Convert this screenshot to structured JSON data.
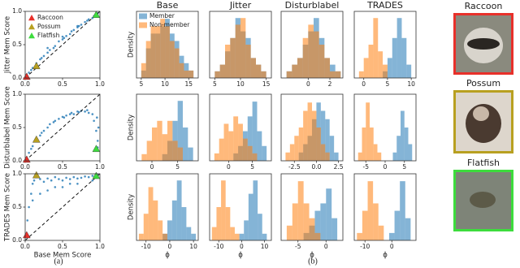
{
  "chart_data": [
    {
      "type": "scatter",
      "ylabel": "Jitter Mem Score",
      "xlim": [
        0,
        1
      ],
      "ylim": [
        0,
        1
      ],
      "xticks": [
        {
          "value": 0,
          "label": "0.0"
        },
        {
          "value": 0.5,
          "label": "0.5"
        },
        {
          "value": 1,
          "label": "1.0"
        }
      ],
      "yticks": [
        {
          "value": 0,
          "label": "0.0"
        },
        {
          "value": 0.5,
          "label": "0.5"
        },
        {
          "value": 1,
          "label": "1.0"
        }
      ],
      "color": "#1f77b4",
      "diagonal": true,
      "legend": "upper left",
      "x": [
        0.02,
        0.05,
        0.08,
        0.1,
        0.15,
        0.2,
        0.22,
        0.25,
        0.3,
        0.33,
        0.38,
        0.4,
        0.45,
        0.5,
        0.52,
        0.55,
        0.6,
        0.62,
        0.65,
        0.7,
        0.72,
        0.75,
        0.8,
        0.83,
        0.85,
        0.9,
        0.92,
        0.95,
        0.97,
        0.3,
        0.5,
        0.7
      ],
      "y": [
        0.05,
        0.08,
        0.12,
        0.15,
        0.22,
        0.28,
        0.3,
        0.33,
        0.38,
        0.42,
        0.45,
        0.48,
        0.55,
        0.58,
        0.6,
        0.63,
        0.66,
        0.7,
        0.72,
        0.76,
        0.78,
        0.8,
        0.84,
        0.86,
        0.88,
        0.9,
        0.93,
        0.95,
        0.97,
        0.45,
        0.62,
        0.78
      ],
      "markers": [
        {
          "name": "Raccoon",
          "color": "#e8302a",
          "x": 0.02,
          "y": 0.02
        },
        {
          "name": "Possum",
          "color": "#b8a020",
          "x": 0.15,
          "y": 0.18
        },
        {
          "name": "Flatfish",
          "color": "#3ddc3d",
          "x": 0.95,
          "y": 0.95
        }
      ]
    },
    {
      "type": "scatter",
      "ylabel": "Disturblabel Mem Score",
      "xlim": [
        0,
        1
      ],
      "ylim": [
        0,
        1
      ],
      "xticks": [
        {
          "value": 0,
          "label": "0.0"
        },
        {
          "value": 0.5,
          "label": "0.5"
        },
        {
          "value": 1,
          "label": "1.0"
        }
      ],
      "yticks": [
        {
          "value": 0,
          "label": "0.0"
        },
        {
          "value": 0.5,
          "label": "0.5"
        },
        {
          "value": 1,
          "label": "1.0"
        }
      ],
      "color": "#1f77b4",
      "diagonal": true,
      "x": [
        0.02,
        0.05,
        0.08,
        0.1,
        0.15,
        0.2,
        0.22,
        0.25,
        0.3,
        0.33,
        0.38,
        0.4,
        0.45,
        0.5,
        0.52,
        0.55,
        0.6,
        0.62,
        0.65,
        0.7,
        0.72,
        0.75,
        0.8,
        0.83,
        0.85,
        0.9,
        0.92,
        0.95,
        0.97,
        0.97,
        0.98,
        0.96
      ],
      "y": [
        0.05,
        0.12,
        0.18,
        0.22,
        0.3,
        0.38,
        0.42,
        0.45,
        0.5,
        0.55,
        0.58,
        0.6,
        0.63,
        0.66,
        0.65,
        0.68,
        0.7,
        0.72,
        0.7,
        0.74,
        0.73,
        0.75,
        0.74,
        0.76,
        0.72,
        0.7,
        0.6,
        0.45,
        0.3,
        0.2,
        0.5,
        0.65
      ],
      "markers": [
        {
          "color": "#e8302a",
          "x": 0.02,
          "y": 0.02
        },
        {
          "color": "#b8a020",
          "x": 0.15,
          "y": 0.32
        },
        {
          "color": "#3ddc3d",
          "x": 0.95,
          "y": 0.18
        }
      ]
    },
    {
      "type": "scatter",
      "ylabel": "TRADES Mem Score",
      "xlabel": "Base Mem Score",
      "xlim": [
        0,
        1
      ],
      "ylim": [
        0,
        1
      ],
      "xticks": [
        {
          "value": 0,
          "label": "0.0"
        },
        {
          "value": 0.5,
          "label": "0.5"
        },
        {
          "value": 1,
          "label": "1.0"
        }
      ],
      "yticks": [
        {
          "value": 0,
          "label": "0.0"
        },
        {
          "value": 0.5,
          "label": "0.5"
        },
        {
          "value": 1,
          "label": "1.0"
        }
      ],
      "color": "#1f77b4",
      "diagonal": true,
      "x": [
        0.02,
        0.03,
        0.05,
        0.08,
        0.1,
        0.12,
        0.15,
        0.2,
        0.25,
        0.3,
        0.35,
        0.4,
        0.45,
        0.5,
        0.55,
        0.6,
        0.65,
        0.7,
        0.75,
        0.8,
        0.85,
        0.9,
        0.95,
        0.97,
        0.1,
        0.3,
        0.5,
        0.7,
        0.9,
        0.2,
        0.4,
        0.6
      ],
      "y": [
        0.1,
        0.3,
        0.5,
        0.7,
        0.85,
        0.9,
        0.95,
        0.92,
        0.88,
        0.93,
        0.9,
        0.95,
        0.92,
        0.9,
        0.94,
        0.92,
        0.95,
        0.93,
        0.94,
        0.96,
        0.95,
        0.97,
        0.96,
        0.98,
        0.6,
        0.75,
        0.8,
        0.85,
        0.9,
        0.7,
        0.8,
        0.85
      ],
      "markers": [
        {
          "color": "#e8302a",
          "x": 0.02,
          "y": 0.08
        },
        {
          "color": "#b8a020",
          "x": 0.15,
          "y": 0.98
        },
        {
          "color": "#3ddc3d",
          "x": 0.95,
          "y": 0.97
        }
      ]
    },
    {
      "type": "histogram",
      "title": "Base",
      "ylabel": "Density",
      "legend": "upper left",
      "xlim": [
        4,
        17
      ],
      "ylim": [
        0,
        9
      ],
      "xticks": [
        5,
        10,
        15
      ],
      "bins": [
        5,
        6,
        7,
        8,
        9,
        10,
        11,
        12,
        13,
        14,
        15,
        16
      ],
      "series": [
        {
          "name": "Member",
          "color": "#1f77b4",
          "values": [
            1,
            4,
            6,
            6,
            7,
            8,
            6,
            5,
            3,
            2,
            1
          ]
        },
        {
          "name": "Non-member",
          "color": "#ff7f0e",
          "values": [
            2,
            5,
            7,
            7,
            8,
            7,
            5,
            4,
            2,
            1,
            1
          ]
        }
      ]
    },
    {
      "type": "histogram",
      "title": "Jitter",
      "xlim": [
        4,
        16
      ],
      "ylim": [
        0,
        10
      ],
      "xticks": [
        5,
        10,
        15
      ],
      "bins": [
        5,
        6,
        7,
        8,
        9,
        10,
        11,
        12,
        13,
        14,
        15
      ],
      "series": [
        {
          "color": "#1f77b4",
          "values": [
            1,
            2,
            4,
            6,
            9,
            7,
            6,
            3,
            2,
            1
          ]
        },
        {
          "color": "#ff7f0e",
          "values": [
            1,
            2,
            5,
            6,
            8,
            9,
            5,
            3,
            2,
            1
          ]
        }
      ]
    },
    {
      "type": "histogram",
      "title": "Disturblabel",
      "xlim": [
        -2.5,
        3.2
      ],
      "ylim": [
        0,
        10
      ],
      "xticks": [
        0,
        2
      ],
      "bins": [
        -2,
        -1.5,
        -1,
        -0.5,
        0,
        0.5,
        1,
        1.5,
        2,
        2.5,
        3
      ],
      "series": [
        {
          "color": "#1f77b4",
          "values": [
            1,
            2,
            3,
            5,
            7,
            9,
            6,
            3,
            2,
            1
          ]
        },
        {
          "color": "#ff7f0e",
          "values": [
            1,
            2,
            3,
            6,
            8,
            7,
            5,
            3,
            1,
            1
          ]
        }
      ]
    },
    {
      "type": "histogram",
      "title": "TRADES",
      "xlim": [
        -2,
        11
      ],
      "ylim": [
        0,
        10
      ],
      "xticks": [
        0,
        5,
        10
      ],
      "bins": [
        -1,
        0,
        1,
        2,
        3,
        4,
        5,
        6,
        7,
        8,
        9,
        10
      ],
      "series": [
        {
          "color": "#1f77b4",
          "values": [
            0,
            0,
            0,
            0,
            0,
            1,
            3,
            6,
            9,
            6,
            2
          ]
        },
        {
          "color": "#ff7f0e",
          "values": [
            1,
            3,
            5,
            9,
            4,
            2,
            0,
            0,
            0,
            0,
            0
          ]
        }
      ]
    },
    {
      "type": "histogram",
      "ylabel": "Density",
      "xlim": [
        -3,
        9
      ],
      "ylim": [
        0,
        10
      ],
      "xticks": [
        0,
        5
      ],
      "bins": [
        -2,
        -1,
        0,
        1,
        2,
        3,
        4,
        5,
        6,
        7,
        8
      ],
      "series": [
        {
          "color": "#1f77b4",
          "values": [
            0,
            0,
            0,
            0,
            1,
            3,
            6,
            9,
            5,
            2
          ]
        },
        {
          "color": "#ff7f0e",
          "values": [
            1,
            3,
            5,
            6,
            4,
            6,
            3,
            2,
            0,
            0
          ]
        }
      ]
    },
    {
      "type": "histogram",
      "xlim": [
        -4,
        9
      ],
      "ylim": [
        0,
        9
      ],
      "xticks": [
        0,
        5
      ],
      "bins": [
        -3,
        -2,
        -1,
        0,
        1,
        2,
        3,
        4,
        5,
        6,
        7,
        8
      ],
      "series": [
        {
          "color": "#1f77b4",
          "values": [
            0,
            0,
            0,
            0,
            1,
            2,
            4,
            6,
            8,
            4,
            2
          ]
        },
        {
          "color": "#ff7f0e",
          "values": [
            1,
            3,
            5,
            4,
            6,
            5,
            3,
            2,
            1,
            0,
            0
          ]
        }
      ]
    },
    {
      "type": "histogram",
      "xlim": [
        -4,
        3
      ],
      "ylim": [
        0,
        8
      ],
      "xticks": [
        -2.5,
        {
          "value": 0,
          "label": "0.0"
        },
        2.5
      ],
      "bins": [
        -3.5,
        -3,
        -2.5,
        -2,
        -1.5,
        -1,
        -0.5,
        0,
        0.5,
        1,
        1.5,
        2,
        2.5
      ],
      "series": [
        {
          "color": "#1f77b4",
          "values": [
            0,
            0,
            0,
            1,
            2,
            3,
            5,
            7,
            6,
            5,
            3,
            1
          ]
        },
        {
          "color": "#ff7f0e",
          "values": [
            1,
            2,
            3,
            4,
            6,
            7,
            6,
            4,
            2,
            1,
            0,
            0
          ]
        }
      ]
    },
    {
      "type": "histogram",
      "xlim": [
        -8,
        8
      ],
      "ylim": [
        0,
        8
      ],
      "xticks": [
        -5,
        0,
        5
      ],
      "bins": [
        -7,
        -6,
        -5,
        -4,
        -3,
        -2,
        -1,
        0,
        1,
        2,
        3,
        4,
        5,
        6,
        7
      ],
      "series": [
        {
          "color": "#1f77b4",
          "values": [
            0,
            0,
            0,
            0,
            0,
            0,
            0,
            0,
            0,
            1,
            3,
            6,
            4,
            2
          ]
        },
        {
          "color": "#ff7f0e",
          "values": [
            1,
            4,
            7,
            4,
            2,
            1,
            0,
            0,
            0,
            0,
            0,
            0,
            0,
            0
          ]
        }
      ]
    },
    {
      "type": "histogram",
      "ylabel": "Density",
      "xlabel": "ϕ",
      "xlim": [
        -14,
        12
      ],
      "ylim": [
        0,
        10
      ],
      "xticks": [
        -10,
        0,
        10
      ],
      "bins": [
        -13,
        -11,
        -9,
        -7,
        -5,
        -3,
        -1,
        1,
        3,
        5,
        7,
        9,
        11
      ],
      "series": [
        {
          "color": "#1f77b4",
          "values": [
            0,
            0,
            0,
            0,
            0,
            1,
            3,
            6,
            9,
            5,
            2,
            1
          ]
        },
        {
          "color": "#ff7f0e",
          "values": [
            1,
            4,
            8,
            6,
            3,
            1,
            0,
            0,
            0,
            0,
            0,
            0
          ]
        }
      ]
    },
    {
      "type": "histogram",
      "xlabel": "ϕ",
      "xlim": [
        -14,
        13
      ],
      "ylim": [
        0,
        10
      ],
      "xticks": [
        -10,
        0,
        10
      ],
      "bins": [
        -13,
        -11,
        -9,
        -7,
        -5,
        -3,
        -1,
        1,
        3,
        5,
        7,
        9,
        11
      ],
      "series": [
        {
          "color": "#1f77b4",
          "values": [
            0,
            0,
            0,
            0,
            0,
            0,
            1,
            3,
            7,
            9,
            4,
            1
          ]
        },
        {
          "color": "#ff7f0e",
          "values": [
            2,
            5,
            9,
            5,
            2,
            1,
            0,
            0,
            0,
            0,
            0,
            0
          ]
        }
      ]
    },
    {
      "type": "histogram",
      "xlabel": "ϕ",
      "xlim": [
        -8,
        3
      ],
      "ylim": [
        0,
        9
      ],
      "xticks": [
        -5,
        0
      ],
      "bins": [
        -7,
        -6,
        -5,
        -4,
        -3,
        -2,
        -1,
        0,
        1,
        2
      ],
      "series": [
        {
          "color": "#1f77b4",
          "values": [
            0,
            0,
            0,
            1,
            2,
            4,
            5,
            7,
            3
          ]
        },
        {
          "color": "#ff7f0e",
          "values": [
            2,
            5,
            8,
            5,
            3,
            1,
            0,
            0,
            0
          ]
        }
      ]
    },
    {
      "type": "histogram",
      "xlabel": "ϕ",
      "xlim": [
        -14,
        9
      ],
      "ylim": [
        0,
        9
      ],
      "xticks": [
        -10,
        0
      ],
      "bins": [
        -13,
        -11,
        -9,
        -7,
        -5,
        -3,
        -1,
        1,
        3,
        5,
        7
      ],
      "series": [
        {
          "color": "#1f77b4",
          "values": [
            0,
            0,
            0,
            0,
            0,
            0,
            1,
            4,
            8,
            3
          ]
        },
        {
          "color": "#ff7f0e",
          "values": [
            1,
            4,
            8,
            5,
            2,
            0,
            0,
            0,
            0,
            0
          ]
        }
      ]
    }
  ],
  "images": [
    {
      "label": "Raccoon",
      "color": "#e8302a"
    },
    {
      "label": "Possum",
      "color": "#b8a020"
    },
    {
      "label": "Flatfish",
      "color": "#3ddc3d"
    }
  ],
  "captions": {
    "a": "(a)",
    "b": "(b)"
  }
}
